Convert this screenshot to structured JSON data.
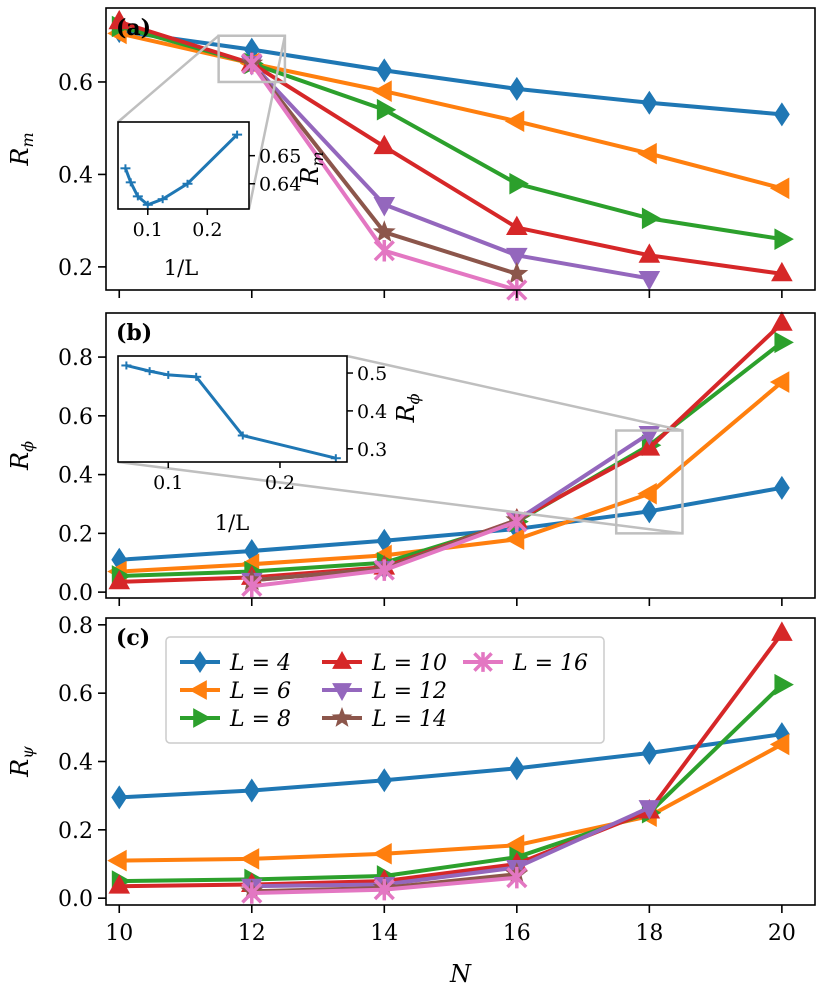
{
  "chart_data": {
    "type": "line",
    "xlabel": "N",
    "x": [
      10,
      12,
      14,
      16,
      18,
      20
    ],
    "x_ticks": [
      "10",
      "12",
      "14",
      "16",
      "18",
      "20"
    ],
    "xlim": [
      9.8,
      20.5
    ],
    "legend": {
      "location": "top-left of panel (c)",
      "entries": [
        "L = 4",
        "L = 6",
        "L = 8",
        "L = 10",
        "L = 12",
        "L = 14",
        "L = 16"
      ]
    },
    "series_styles": [
      {
        "name": "L = 4",
        "color": "#1f77b4",
        "marker": "diamond"
      },
      {
        "name": "L = 6",
        "color": "#ff7f0e",
        "marker": "triangle-left"
      },
      {
        "name": "L = 8",
        "color": "#2ca02c",
        "marker": "triangle-right"
      },
      {
        "name": "L = 10",
        "color": "#d62728",
        "marker": "triangle-up"
      },
      {
        "name": "L = 12",
        "color": "#9467bd",
        "marker": "triangle-down"
      },
      {
        "name": "L = 14",
        "color": "#8c564b",
        "marker": "star"
      },
      {
        "name": "L = 16",
        "color": "#e377c2",
        "marker": "x"
      }
    ],
    "panels": [
      {
        "label": "(a)",
        "ylabel": "R_m",
        "ylim": [
          0.15,
          0.76
        ],
        "y_ticks": [
          0.2,
          0.4,
          0.6
        ],
        "y_tick_labels": [
          "0.2",
          "0.4",
          "0.6"
        ],
        "series": [
          {
            "name": "L = 4",
            "x": [
              10,
              12,
              14,
              16,
              18,
              20
            ],
            "values": [
              0.71,
              0.67,
              0.625,
              0.585,
              0.555,
              0.53
            ]
          },
          {
            "name": "L = 6",
            "x": [
              10,
              12,
              14,
              16,
              18,
              20
            ],
            "values": [
              0.705,
              0.64,
              0.58,
              0.515,
              0.445,
              0.37
            ]
          },
          {
            "name": "L = 8",
            "x": [
              10,
              12,
              14,
              16,
              18,
              20
            ],
            "values": [
              0.72,
              0.64,
              0.54,
              0.38,
              0.305,
              0.26
            ]
          },
          {
            "name": "L = 10",
            "x": [
              10,
              12,
              14,
              16,
              18,
              20
            ],
            "values": [
              0.73,
              0.64,
              0.46,
              0.285,
              0.225,
              0.185
            ]
          },
          {
            "name": "L = 12",
            "x": [
              12,
              14,
              16,
              18
            ],
            "values": [
              0.64,
              0.335,
              0.225,
              0.175
            ]
          },
          {
            "name": "L = 14",
            "x": [
              12,
              14,
              16
            ],
            "values": [
              0.64,
              0.275,
              0.185
            ]
          },
          {
            "name": "L = 16",
            "x": [
              12,
              14,
              16
            ],
            "values": [
              0.64,
              0.235,
              0.15
            ]
          }
        ],
        "highlight_box": {
          "x": [
            11.5,
            12.5
          ],
          "y": [
            0.6,
            0.7
          ]
        },
        "inset": {
          "xlabel": "1/L",
          "ylabel": "R_m",
          "x_ticks": [
            "0.1",
            "0.2"
          ],
          "y_tick_labels": [
            "0.64",
            "0.65"
          ],
          "x_tick_values": [
            0.1,
            0.2
          ],
          "y_tick_values": [
            0.64,
            0.65
          ],
          "xlim": [
            0.05,
            0.27
          ],
          "ylim": [
            0.631,
            0.662
          ],
          "x": [
            0.0625,
            0.0714,
            0.0833,
            0.1,
            0.125,
            0.1667,
            0.25
          ],
          "values": [
            0.6455,
            0.6405,
            0.6355,
            0.6325,
            0.6345,
            0.64,
            0.6575
          ]
        }
      },
      {
        "label": "(b)",
        "ylabel": "R_phi",
        "ylim": [
          -0.02,
          0.95
        ],
        "y_ticks": [
          0.0,
          0.2,
          0.4,
          0.6,
          0.8
        ],
        "y_tick_labels": [
          "0.0",
          "0.2",
          "0.4",
          "0.6",
          "0.8"
        ],
        "series": [
          {
            "name": "L = 4",
            "x": [
              10,
              12,
              14,
              16,
              18,
              20
            ],
            "values": [
              0.11,
              0.14,
              0.175,
              0.215,
              0.275,
              0.355
            ]
          },
          {
            "name": "L = 6",
            "x": [
              10,
              12,
              14,
              16,
              18,
              20
            ],
            "values": [
              0.07,
              0.095,
              0.125,
              0.18,
              0.335,
              0.715
            ]
          },
          {
            "name": "L = 8",
            "x": [
              10,
              12,
              14,
              16,
              18,
              20
            ],
            "values": [
              0.055,
              0.07,
              0.1,
              0.24,
              0.5,
              0.85
            ]
          },
          {
            "name": "L = 10",
            "x": [
              10,
              12,
              14,
              16,
              18,
              20
            ],
            "values": [
              0.035,
              0.05,
              0.085,
              0.245,
              0.49,
              0.915
            ]
          },
          {
            "name": "L = 12",
            "x": [
              12,
              14,
              16,
              18
            ],
            "values": [
              0.04,
              0.08,
              0.245,
              0.54
            ]
          },
          {
            "name": "L = 14",
            "x": [
              12,
              14,
              16
            ],
            "values": [
              0.04,
              0.08,
              0.245
            ]
          },
          {
            "name": "L = 16",
            "x": [
              12,
              14,
              16
            ],
            "values": [
              0.02,
              0.075,
              0.24
            ]
          }
        ],
        "highlight_box": {
          "x": [
            17.5,
            18.5
          ],
          "y": [
            0.2,
            0.55
          ]
        },
        "inset": {
          "xlabel": "1/L",
          "ylabel": "R_phi",
          "x_ticks": [
            "0.1",
            "0.2"
          ],
          "y_tick_labels": [
            "0.3",
            "0.4",
            "0.5"
          ],
          "x_tick_values": [
            0.1,
            0.2
          ],
          "y_tick_values": [
            0.3,
            0.4,
            0.5
          ],
          "xlim": [
            0.055,
            0.26
          ],
          "ylim": [
            0.265,
            0.545
          ],
          "x": [
            0.0625,
            0.0833,
            0.1,
            0.125,
            0.1667,
            0.25
          ],
          "values": [
            0.52,
            0.505,
            0.495,
            0.49,
            0.335,
            0.275
          ]
        }
      },
      {
        "label": "(c)",
        "ylabel": "R_psi",
        "ylim": [
          -0.02,
          0.82
        ],
        "y_ticks": [
          0.0,
          0.2,
          0.4,
          0.6,
          0.8
        ],
        "y_tick_labels": [
          "0.0",
          "0.2",
          "0.4",
          "0.6",
          "0.8"
        ],
        "series": [
          {
            "name": "L = 4",
            "x": [
              10,
              12,
              14,
              16,
              18,
              20
            ],
            "values": [
              0.295,
              0.315,
              0.345,
              0.38,
              0.425,
              0.48
            ]
          },
          {
            "name": "L = 6",
            "x": [
              10,
              12,
              14,
              16,
              18,
              20
            ],
            "values": [
              0.11,
              0.115,
              0.13,
              0.155,
              0.24,
              0.45
            ]
          },
          {
            "name": "L = 8",
            "x": [
              10,
              12,
              14,
              16,
              18,
              20
            ],
            "values": [
              0.05,
              0.055,
              0.065,
              0.12,
              0.25,
              0.625
            ]
          },
          {
            "name": "L = 10",
            "x": [
              10,
              12,
              14,
              16,
              18,
              20
            ],
            "values": [
              0.035,
              0.04,
              0.05,
              0.1,
              0.255,
              0.775
            ]
          },
          {
            "name": "L = 12",
            "x": [
              12,
              14,
              16,
              18
            ],
            "values": [
              0.035,
              0.04,
              0.09,
              0.265
            ]
          },
          {
            "name": "L = 14",
            "x": [
              12,
              14,
              16
            ],
            "values": [
              0.02,
              0.03,
              0.07
            ]
          },
          {
            "name": "L = 16",
            "x": [
              12,
              14,
              16
            ],
            "values": [
              0.015,
              0.025,
              0.06
            ]
          }
        ]
      }
    ]
  }
}
